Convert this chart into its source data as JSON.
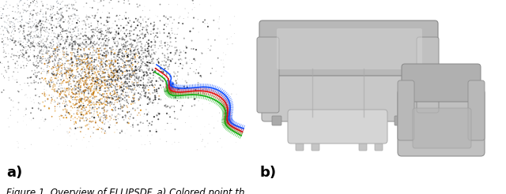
{
  "label_a": "a)",
  "label_b": "b)",
  "bg_color": "#ffffff",
  "caption_color": "#000000",
  "label_fontsize": 13,
  "caption_fontsize": 8.5,
  "fig_width": 6.4,
  "fig_height": 2.46,
  "dpi": 100,
  "caption_text": "Figure 1. Overview of ELLIPSDF. a) Colored point th"
}
